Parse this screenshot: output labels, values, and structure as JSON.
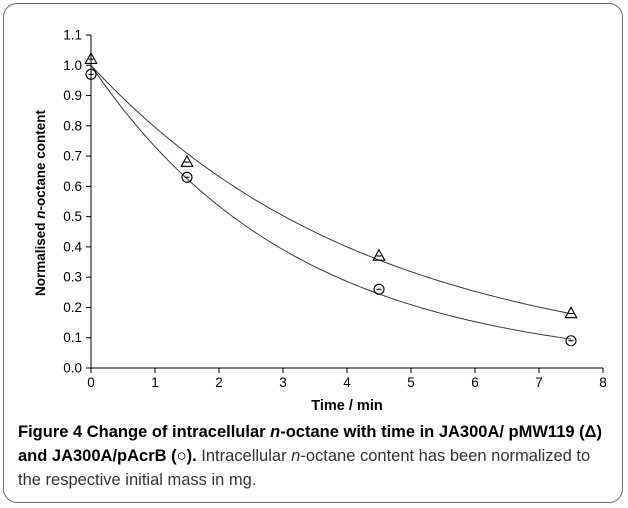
{
  "chart_data": {
    "type": "scatter",
    "xlabel": "Time / min",
    "ylabel": "Normalised n-octane content",
    "ylabel_parts": [
      "Normalised ",
      "n",
      "-octane content"
    ],
    "xlim": [
      0,
      8
    ],
    "ylim": [
      0,
      1.1
    ],
    "x_ticks": [
      "0",
      "1",
      "2",
      "3",
      "4",
      "5",
      "6",
      "7",
      "8"
    ],
    "y_ticks": [
      "0.0",
      "0.1",
      "0.2",
      "0.3",
      "0.4",
      "0.5",
      "0.6",
      "0.7",
      "0.8",
      "0.9",
      "1.0",
      "1.1"
    ],
    "grid": false,
    "series": [
      {
        "marker": "triangle",
        "x": [
          0,
          1.5,
          4.5,
          7.5
        ],
        "y": [
          1.02,
          0.68,
          0.37,
          0.18
        ],
        "fit": "exponential",
        "fit_k": 0.229
      },
      {
        "marker": "circle",
        "x": [
          0,
          1.5,
          4.5,
          7.5
        ],
        "y": [
          0.97,
          0.63,
          0.26,
          0.09
        ],
        "fit": "exponential",
        "fit_k": 0.313
      }
    ]
  },
  "caption": {
    "title_parts": [
      "Figure 4 Change of intracellular ",
      "n",
      "-octane with time in JA300A/ pMW119 (Δ) and JA300A/pAcrB (○)."
    ],
    "body_parts": [
      " Intracellular ",
      "n",
      "-octane content has been normalized to the respective initial mass in mg."
    ]
  }
}
